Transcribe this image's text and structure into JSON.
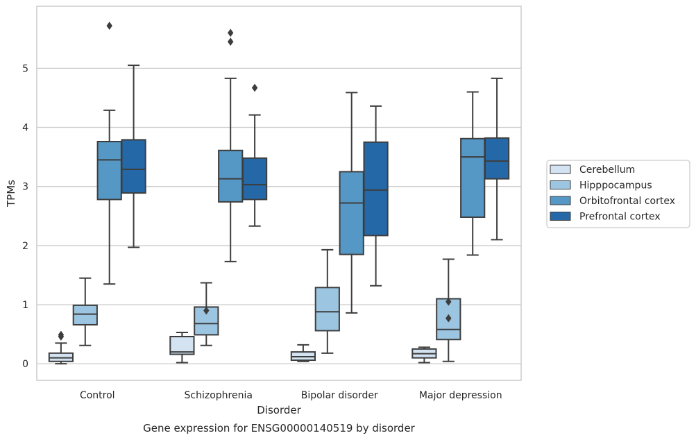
{
  "chart_data": {
    "type": "boxplot",
    "caption": "Gene expression for ENSG00000140519 by disorder",
    "xlabel": "Disorder",
    "ylabel": "TPMs",
    "ylim": [
      -0.28,
      6.05
    ],
    "yticks": [
      0,
      1,
      2,
      3,
      4,
      5
    ],
    "grid": "horizontal",
    "legend_position": "right",
    "categories": [
      "Control",
      "Schizophrenia",
      "Bipolar disorder",
      "Major depression"
    ],
    "series": [
      {
        "name": "Cerebellum",
        "color": "#d3e3f2",
        "boxes": [
          {
            "whisker_low": 0.0,
            "q1": 0.04,
            "median": 0.1,
            "q3": 0.18,
            "whisker_high": 0.35,
            "outliers": [
              0.46,
              0.49
            ]
          },
          {
            "whisker_low": 0.02,
            "q1": 0.16,
            "median": 0.2,
            "q3": 0.46,
            "whisker_high": 0.53,
            "outliers": []
          },
          {
            "whisker_low": 0.04,
            "q1": 0.06,
            "median": 0.12,
            "q3": 0.2,
            "whisker_high": 0.32,
            "outliers": []
          },
          {
            "whisker_low": 0.02,
            "q1": 0.1,
            "median": 0.17,
            "q3": 0.25,
            "whisker_high": 0.28,
            "outliers": []
          }
        ]
      },
      {
        "name": "Hipppocampus",
        "color": "#9bc5e0",
        "boxes": [
          {
            "whisker_low": 0.31,
            "q1": 0.66,
            "median": 0.84,
            "q3": 0.99,
            "whisker_high": 1.45,
            "outliers": []
          },
          {
            "whisker_low": 0.31,
            "q1": 0.49,
            "median": 0.68,
            "q3": 0.96,
            "whisker_high": 1.37,
            "outliers": [
              0.9
            ]
          },
          {
            "whisker_low": 0.18,
            "q1": 0.56,
            "median": 0.88,
            "q3": 1.29,
            "whisker_high": 1.93,
            "outliers": []
          },
          {
            "whisker_low": 0.04,
            "q1": 0.41,
            "median": 0.58,
            "q3": 1.1,
            "whisker_high": 1.77,
            "outliers": [
              0.77,
              1.05
            ]
          }
        ]
      },
      {
        "name": "Orbitofrontal cortex",
        "color": "#5598c6",
        "boxes": [
          {
            "whisker_low": 1.35,
            "q1": 2.78,
            "median": 3.45,
            "q3": 3.76,
            "whisker_high": 4.29,
            "outliers": [
              5.72
            ]
          },
          {
            "whisker_low": 1.73,
            "q1": 2.74,
            "median": 3.13,
            "q3": 3.61,
            "whisker_high": 4.83,
            "outliers": [
              5.45,
              5.6
            ]
          },
          {
            "whisker_low": 0.86,
            "q1": 1.85,
            "median": 2.72,
            "q3": 3.25,
            "whisker_high": 4.59,
            "outliers": []
          },
          {
            "whisker_low": 1.84,
            "q1": 2.48,
            "median": 3.5,
            "q3": 3.81,
            "whisker_high": 4.6,
            "outliers": []
          }
        ]
      },
      {
        "name": "Prefrontal cortex",
        "color": "#2568a8",
        "boxes": [
          {
            "whisker_low": 1.97,
            "q1": 2.89,
            "median": 3.29,
            "q3": 3.79,
            "whisker_high": 5.05,
            "outliers": []
          },
          {
            "whisker_low": 2.33,
            "q1": 2.78,
            "median": 3.03,
            "q3": 3.48,
            "whisker_high": 4.21,
            "outliers": [
              4.67
            ]
          },
          {
            "whisker_low": 1.32,
            "q1": 2.17,
            "median": 2.94,
            "q3": 3.75,
            "whisker_high": 4.36,
            "outliers": []
          },
          {
            "whisker_low": 2.1,
            "q1": 3.13,
            "median": 3.43,
            "q3": 3.82,
            "whisker_high": 4.83,
            "outliers": []
          }
        ]
      }
    ]
  }
}
